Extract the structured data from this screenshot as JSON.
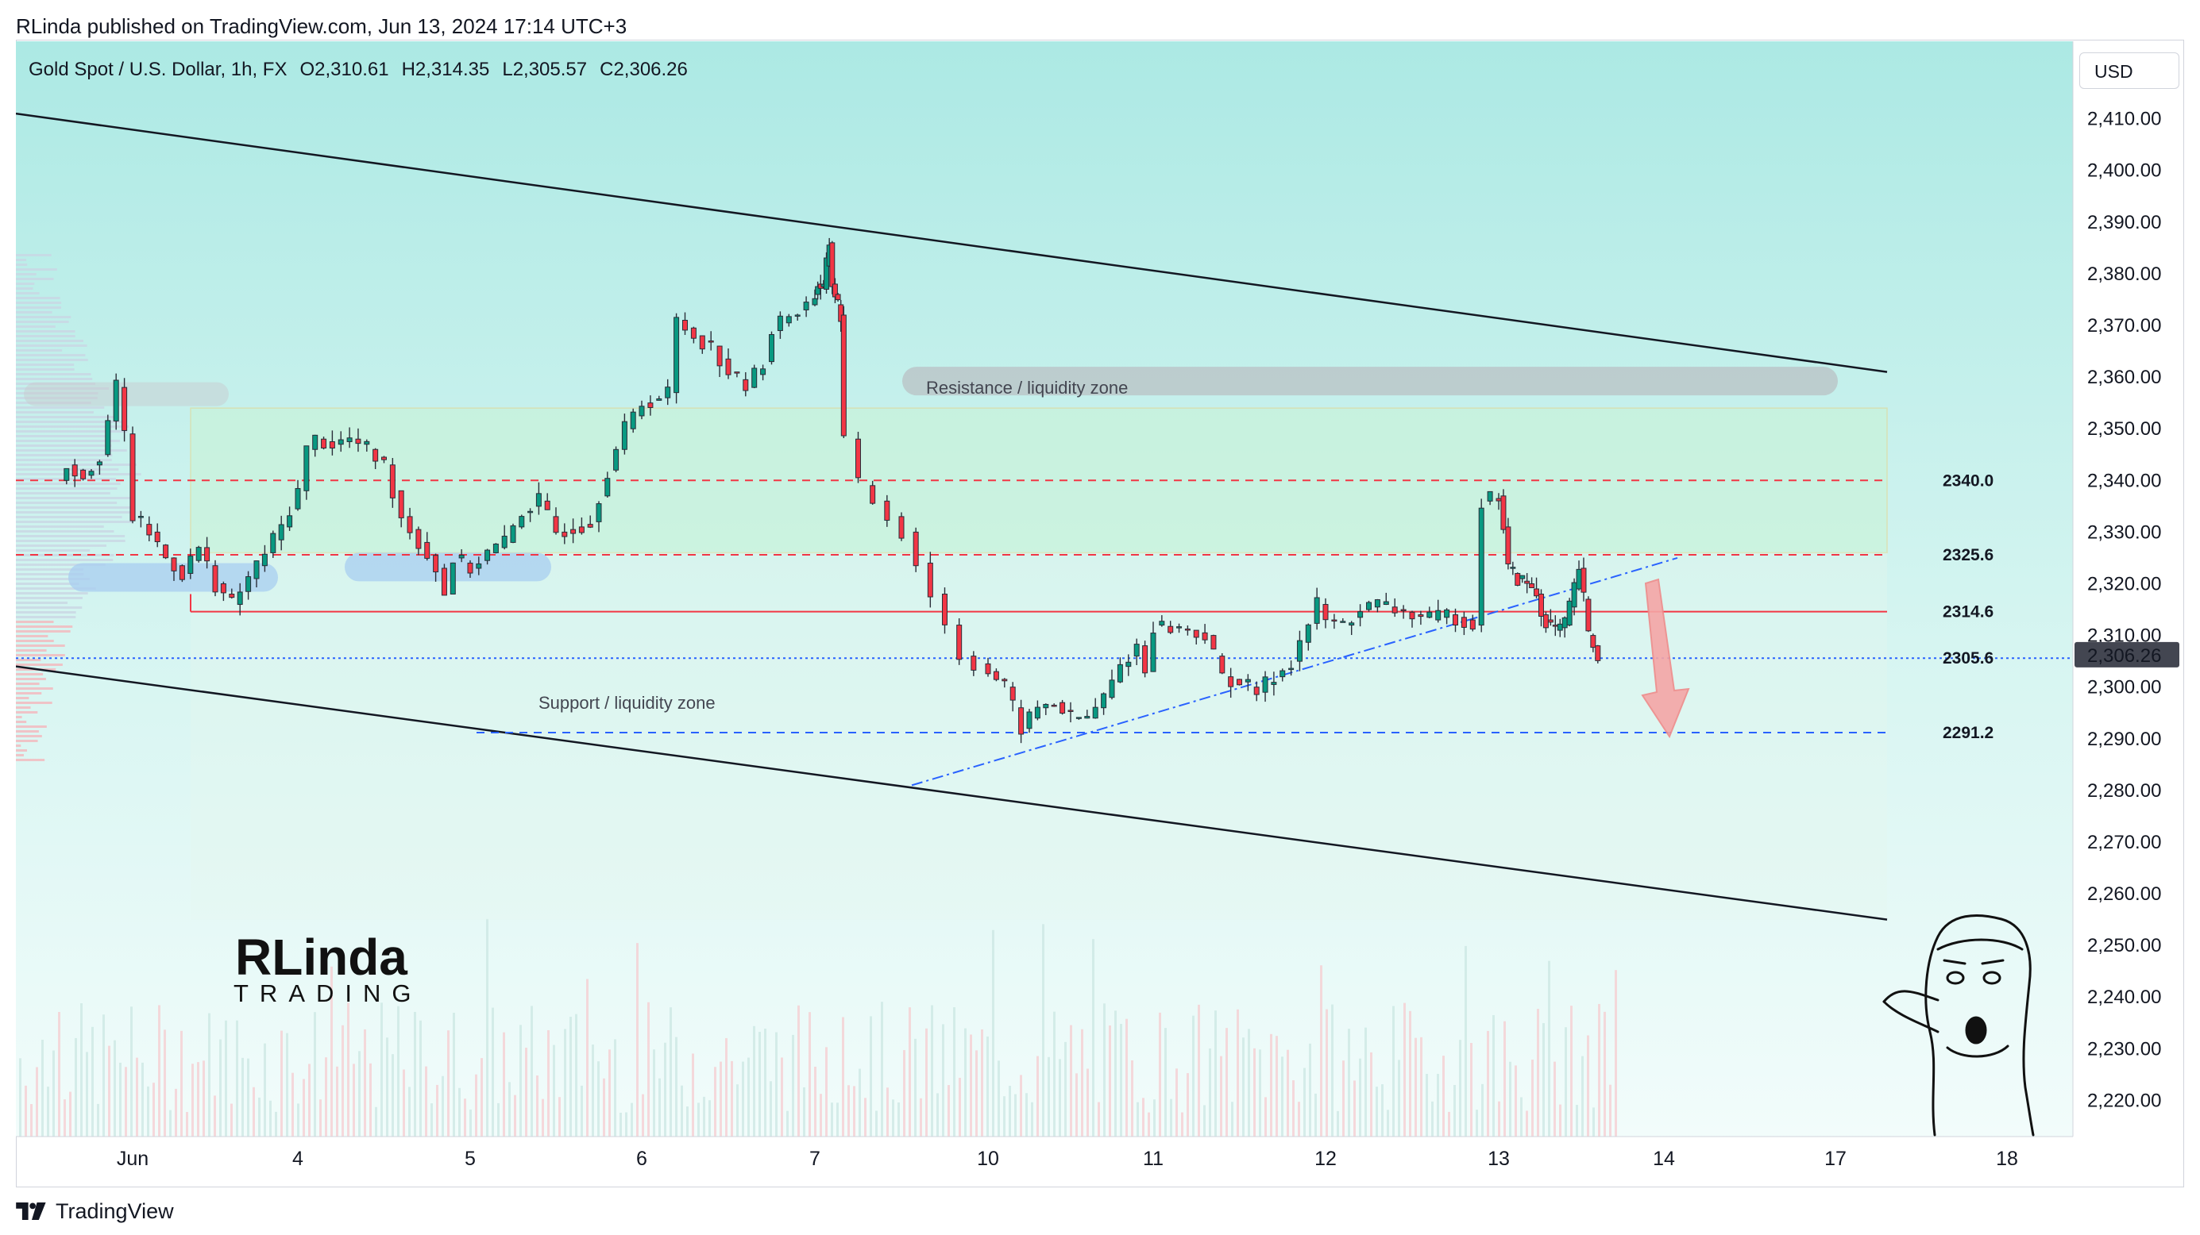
{
  "header": {
    "publisher": "RLinda published on TradingView.com, Jun 13, 2024 17:14 UTC+3",
    "symbol": "Gold Spot / U.S. Dollar, 1h, FX",
    "open": "O2,310.61",
    "high": "H2,314.35",
    "low": "L2,305.57",
    "close": "C2,306.26"
  },
  "currency_button": "USD",
  "footer": {
    "brand": "TradingView"
  },
  "logo": {
    "text": "RLinda TRADING"
  },
  "colors": {
    "up": "#089981",
    "down": "#f23645",
    "bg_top": "#b2efe9",
    "bg_bottom": "#effbfa",
    "resistance": "#f23645",
    "support_line": "#2962ff",
    "price_tag": "#434651"
  },
  "chart_data": {
    "type": "candlestick",
    "instrument": "Gold Spot / U.S. Dollar",
    "timeframe": "1h",
    "ylim": [
      2213,
      2425
    ],
    "y_ticks": [
      "2,410.00",
      "2,400.00",
      "2,390.00",
      "2,380.00",
      "2,370.00",
      "2,360.00",
      "2,350.00",
      "2,340.00",
      "2,330.00",
      "2,320.00",
      "2,310.00",
      "2,300.00",
      "2,290.00",
      "2,280.00",
      "2,270.00",
      "2,260.00",
      "2,250.00",
      "2,240.00",
      "2,230.00",
      "2,220.00"
    ],
    "x_ticks": [
      {
        "label": "Jun",
        "day": 3.0
      },
      {
        "label": "4",
        "day": 4.0
      },
      {
        "label": "5",
        "day": 5.0
      },
      {
        "label": "6",
        "day": 6.0
      },
      {
        "label": "7",
        "day": 7.0
      },
      {
        "label": "10",
        "day": 10.0
      },
      {
        "label": "11",
        "day": 11.0
      },
      {
        "label": "12",
        "day": 12.0
      },
      {
        "label": "13",
        "day": 13.0
      },
      {
        "label": "14",
        "day": 14.0
      },
      {
        "label": "17",
        "day": 17.0
      },
      {
        "label": "18",
        "day": 18.0
      }
    ],
    "trading_days": [
      3,
      4,
      5,
      6,
      7,
      10,
      11,
      12,
      13,
      14,
      17,
      18
    ],
    "last_price": "2,306.26",
    "levels": [
      {
        "label": "2340.0",
        "value": 2340.0,
        "style": "dashed",
        "color": "#f23645"
      },
      {
        "label": "2325.6",
        "value": 2325.6,
        "style": "dashed",
        "color": "#f23645"
      },
      {
        "label": "2314.6",
        "value": 2314.6,
        "style": "solid",
        "color": "#f23645"
      },
      {
        "label": "2305.6",
        "value": 2305.6,
        "style": "dotted",
        "color": "#2962ff"
      },
      {
        "label": "2291.2",
        "value": 2291.2,
        "style": "dashed",
        "color": "#2962ff"
      }
    ],
    "zones": [
      {
        "label": "Resistance / liquidity zone",
        "y1": 2360,
        "y2": 2356
      },
      {
        "label": "Support / liquidity zone",
        "y1": 2300,
        "y2": 2300
      }
    ],
    "channel": {
      "upper": [
        [
          2.4,
          2411
        ],
        [
          17.4,
          2361
        ]
      ],
      "lower": [
        [
          2.4,
          2304
        ],
        [
          17.4,
          2255
        ]
      ]
    },
    "trendline": [
      [
        9.6,
        2281
      ],
      [
        14.1,
        2325
      ]
    ],
    "keypoints": [
      [
        2.55,
        2340
      ],
      [
        2.6,
        2343
      ],
      [
        2.7,
        2341
      ],
      [
        2.8,
        2345
      ],
      [
        2.9,
        2358
      ],
      [
        2.95,
        2349
      ],
      [
        3.0,
        2333
      ],
      [
        3.1,
        2330
      ],
      [
        3.2,
        2325
      ],
      [
        3.3,
        2322
      ],
      [
        3.4,
        2327
      ],
      [
        3.5,
        2320
      ],
      [
        3.6,
        2316
      ],
      [
        3.7,
        2321
      ],
      [
        3.8,
        2326
      ],
      [
        3.9,
        2331
      ],
      [
        4.0,
        2338
      ],
      [
        4.05,
        2346
      ],
      [
        4.1,
        2348
      ],
      [
        4.2,
        2347
      ],
      [
        4.3,
        2348
      ],
      [
        4.4,
        2346
      ],
      [
        4.5,
        2343
      ],
      [
        4.55,
        2338
      ],
      [
        4.6,
        2333
      ],
      [
        4.7,
        2328
      ],
      [
        4.8,
        2323
      ],
      [
        4.85,
        2318
      ],
      [
        4.9,
        2325
      ],
      [
        5.0,
        2323
      ],
      [
        5.1,
        2326
      ],
      [
        5.2,
        2328
      ],
      [
        5.3,
        2334
      ],
      [
        5.4,
        2336
      ],
      [
        5.5,
        2330
      ],
      [
        5.6,
        2331
      ],
      [
        5.7,
        2332
      ],
      [
        5.8,
        2342
      ],
      [
        5.9,
        2350
      ],
      [
        6.0,
        2355
      ],
      [
        6.1,
        2356
      ],
      [
        6.15,
        2357
      ],
      [
        6.2,
        2371
      ],
      [
        6.3,
        2368
      ],
      [
        6.4,
        2366
      ],
      [
        6.5,
        2361
      ],
      [
        6.6,
        2358
      ],
      [
        6.7,
        2363
      ],
      [
        6.75,
        2369
      ],
      [
        6.85,
        2372
      ],
      [
        6.95,
        2374
      ],
      [
        7.05,
        2378
      ],
      [
        7.15,
        2377
      ],
      [
        7.25,
        2386
      ],
      [
        7.3,
        2378
      ],
      [
        7.45,
        2372
      ],
      [
        7.5,
        2348
      ],
      [
        7.55,
        2339
      ],
      [
        7.7,
        2330
      ],
      [
        7.8,
        2318
      ],
      [
        7.85,
        2312
      ],
      [
        7.9,
        2306
      ],
      [
        8.1,
        2300
      ],
      [
        8.2,
        2292
      ],
      [
        8.3,
        2296
      ],
      [
        8.4,
        2297
      ],
      [
        8.5,
        2294
      ],
      [
        8.6,
        2294
      ],
      [
        8.7,
        2298
      ],
      [
        8.8,
        2304
      ],
      [
        8.9,
        2308
      ],
      [
        8.95,
        2303
      ],
      [
        9.0,
        2312
      ],
      [
        9.2,
        2311
      ],
      [
        9.3,
        2310
      ],
      [
        9.4,
        2302
      ],
      [
        9.5,
        2301
      ],
      [
        9.6,
        2299
      ],
      [
        9.7,
        2302
      ],
      [
        9.8,
        2305
      ],
      [
        9.95,
        2316
      ],
      [
        10.0,
        2313
      ],
      [
        10.1,
        2312
      ],
      [
        10.2,
        2315
      ],
      [
        10.3,
        2316
      ],
      [
        10.4,
        2315
      ],
      [
        10.5,
        2314
      ],
      [
        10.6,
        2313
      ],
      [
        10.7,
        2314
      ],
      [
        10.8,
        2313
      ],
      [
        10.85,
        2312
      ],
      [
        10.9,
        2336
      ],
      [
        11.0,
        2337
      ],
      [
        11.05,
        2331
      ],
      [
        11.1,
        2323
      ],
      [
        11.2,
        2321
      ],
      [
        11.3,
        2320
      ],
      [
        11.4,
        2318
      ],
      [
        11.45,
        2314
      ],
      [
        11.5,
        2313
      ],
      [
        11.6,
        2311
      ],
      [
        11.7,
        2312
      ],
      [
        11.8,
        2319
      ],
      [
        11.85,
        2323
      ],
      [
        11.9,
        2317
      ],
      [
        11.95,
        2310
      ],
      [
        12.05,
        2306
      ]
    ]
  }
}
